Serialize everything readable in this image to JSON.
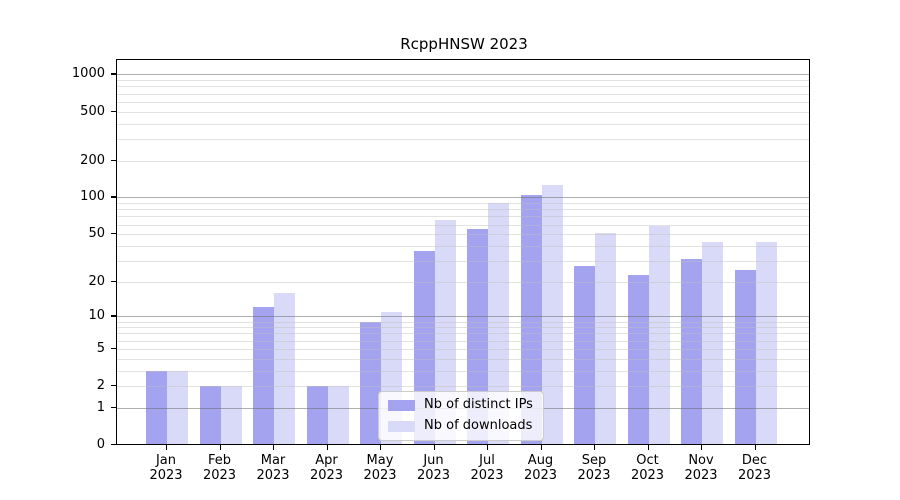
{
  "chart_data": {
    "type": "bar",
    "title": "RcppHNSW 2023",
    "year_label": "2023",
    "categories": [
      "Jan",
      "Feb",
      "Mar",
      "Apr",
      "May",
      "Jun",
      "Jul",
      "Aug",
      "Sep",
      "Oct",
      "Nov",
      "Dec"
    ],
    "series": [
      {
        "name": "Nb of distinct IPs",
        "color": "#a3a3f0",
        "values": [
          3,
          2,
          12,
          2,
          9,
          36,
          55,
          104,
          27,
          23,
          31,
          25
        ]
      },
      {
        "name": "Nb of downloads",
        "color": "#d9d9f8",
        "values": [
          3,
          2,
          16,
          2,
          11,
          65,
          90,
          126,
          51,
          58,
          43,
          43
        ]
      }
    ],
    "yscale": "log1p",
    "ylim": [
      0,
      1000
    ],
    "yticks": [
      0,
      1,
      2,
      5,
      10,
      20,
      50,
      100,
      200,
      500,
      1000
    ],
    "major_gridlines": [
      1,
      10,
      100,
      1000
    ],
    "minor_gridline_steps": [
      2,
      3,
      4,
      5,
      6,
      7,
      8,
      9
    ],
    "xlabel": "",
    "ylabel": "",
    "grid": true,
    "legend_position": "lower center"
  }
}
